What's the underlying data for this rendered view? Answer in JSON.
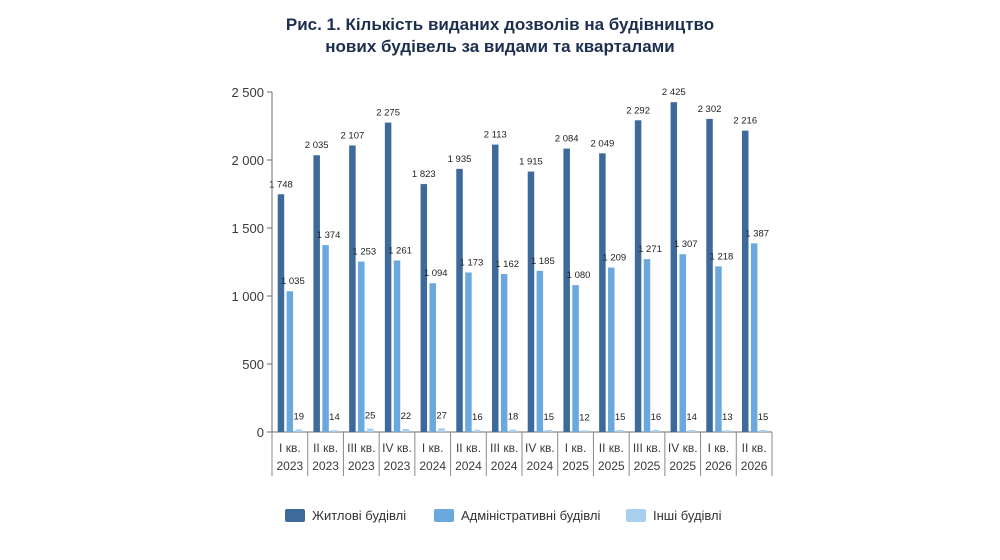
{
  "chart_data": {
    "type": "bar",
    "title_lines": [
      "Рис. 1. Кількість виданих дозволів на будівництво",
      "нових будівель за видами та кварталами"
    ],
    "categories": [
      [
        "I кв.",
        "2023"
      ],
      [
        "II кв.",
        "2023"
      ],
      [
        "III кв.",
        "2023"
      ],
      [
        "IV кв.",
        "2023"
      ],
      [
        "I кв.",
        "2024"
      ],
      [
        "II кв.",
        "2024"
      ],
      [
        "III кв.",
        "2024"
      ],
      [
        "IV кв.",
        "2024"
      ],
      [
        "I кв.",
        "2025"
      ],
      [
        "II кв.",
        "2025"
      ],
      [
        "III кв.",
        "2025"
      ],
      [
        "IV кв.",
        "2025"
      ],
      [
        "I кв.",
        "2026"
      ],
      [
        "II кв.",
        "2026"
      ]
    ],
    "series": [
      {
        "name": "Житлові будівлі",
        "color": "#3e6a9b",
        "values": [
          1748,
          2035,
          2107,
          2275,
          1823,
          1935,
          2113,
          1915,
          2084,
          2049,
          2292,
          2425,
          2302,
          2216
        ],
        "labels": [
          "1 748",
          "2 035",
          "2 107",
          "2 275",
          "1 823",
          "1 935",
          "2 113",
          "1 915",
          "2 084",
          "2 049",
          "2 292",
          "2 425",
          "2 302",
          "2 216"
        ]
      },
      {
        "name": "Адміністративні будівлі",
        "color": "#6aa8de",
        "values": [
          1035,
          1374,
          1253,
          1261,
          1094,
          1173,
          1162,
          1185,
          1080,
          1209,
          1271,
          1307,
          1218,
          1387
        ],
        "labels": [
          "1 035",
          "1 374",
          "1 253",
          "1 261",
          "1 094",
          "1 173",
          "1 162",
          "1 185",
          "1 080",
          "1 209",
          "1 271",
          "1 307",
          "1 218",
          "1 387"
        ]
      },
      {
        "name": "Інші будівлі",
        "color": "#a8d0ee",
        "values": [
          19,
          14,
          25,
          22,
          27,
          16,
          18,
          15,
          12,
          15,
          16,
          14,
          13,
          15
        ],
        "labels": [
          "19",
          "14",
          "25",
          "22",
          "27",
          "16",
          "18",
          "15",
          "12",
          "15",
          "16",
          "14",
          "13",
          "15"
        ]
      }
    ],
    "ylim": [
      0,
      2500
    ],
    "yticks": [
      0,
      500,
      1000,
      1500,
      2000,
      2500
    ],
    "ytick_labels": [
      "0",
      "500",
      "1 000",
      "1 500",
      "2 000",
      "2 500"
    ],
    "grid": false,
    "legend_position": "bottom"
  }
}
